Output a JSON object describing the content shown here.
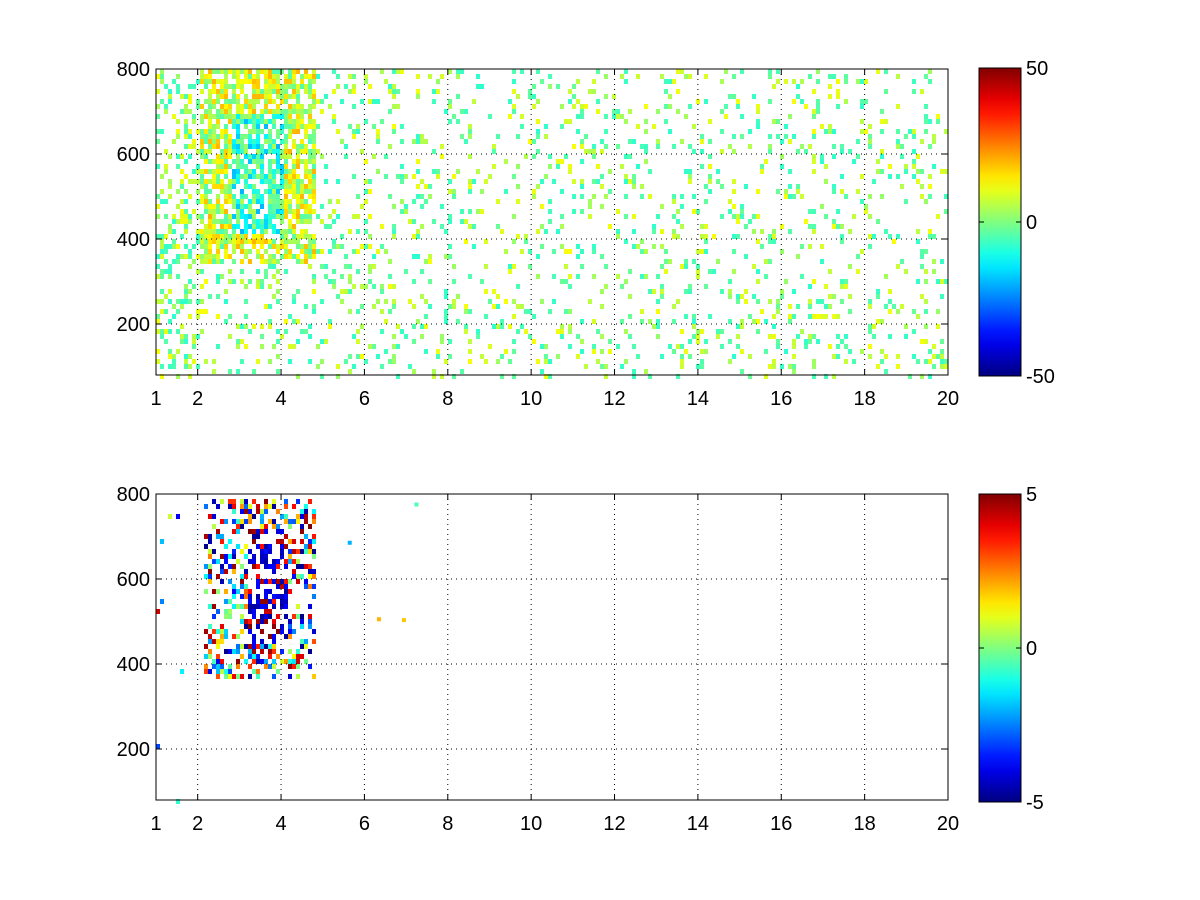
{
  "chart_data": [
    {
      "type": "heatmap",
      "title": "",
      "xlabel": "",
      "ylabel": "",
      "xlim": [
        1,
        20
      ],
      "ylim": [
        80,
        800
      ],
      "x_ticks": [
        "1",
        "2",
        "4",
        "6",
        "8",
        "10",
        "12",
        "14",
        "16",
        "18",
        "20"
      ],
      "x_tick_values": [
        1,
        2,
        4,
        6,
        8,
        10,
        12,
        14,
        16,
        18,
        20
      ],
      "y_ticks": [
        "200",
        "400",
        "600",
        "800"
      ],
      "y_tick_values": [
        200,
        400,
        600,
        800
      ],
      "grid": true,
      "colormap": "jet",
      "colorbar": {
        "min": -50,
        "max": 50,
        "tick_labels": [
          "50",
          "0",
          "-50"
        ],
        "tick_values": [
          50,
          0,
          -50
        ]
      },
      "approx_description_of_dense_region": {
        "x_range": [
          2,
          4.8
        ],
        "y_range": [
          350,
          800
        ]
      },
      "value_range_shown": [
        -50,
        50
      ]
    },
    {
      "type": "heatmap",
      "title": "",
      "xlabel": "",
      "ylabel": "",
      "xlim": [
        1,
        20
      ],
      "ylim": [
        80,
        800
      ],
      "x_ticks": [
        "1",
        "2",
        "4",
        "6",
        "8",
        "10",
        "12",
        "14",
        "16",
        "18",
        "20"
      ],
      "x_tick_values": [
        1,
        2,
        4,
        6,
        8,
        10,
        12,
        14,
        16,
        18,
        20
      ],
      "y_ticks": [
        "200",
        "400",
        "600",
        "800"
      ],
      "y_tick_values": [
        200,
        400,
        600,
        800
      ],
      "grid": true,
      "colormap": "jet",
      "colorbar": {
        "min": -5,
        "max": 5,
        "tick_labels": [
          "5",
          "0",
          "-5"
        ],
        "tick_values": [
          5,
          0,
          -5
        ]
      },
      "approx_description_of_dense_region": {
        "x_range": [
          2,
          4.8
        ],
        "y_range": [
          350,
          800
        ]
      },
      "value_range_shown": [
        -5,
        5
      ]
    }
  ]
}
